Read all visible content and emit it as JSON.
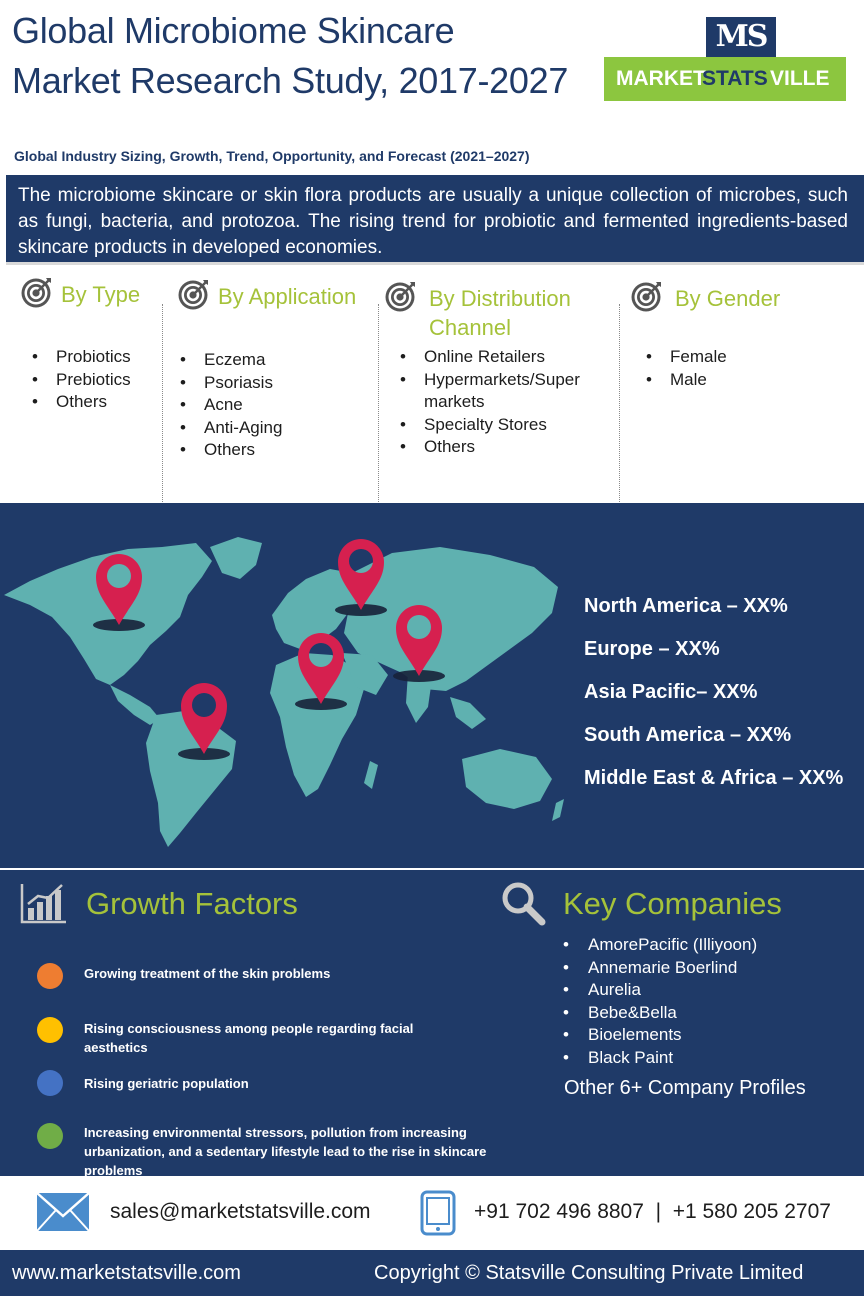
{
  "header": {
    "title": "Global Microbiome Skincare Market Research Study, 2017-2027",
    "subtitle": "Global Industry Sizing, Growth, Trend, Opportunity, and Forecast (2021–2027)"
  },
  "logo": {
    "monogram": "MS",
    "word1": "MARKET",
    "word2": "STATS",
    "word3": "VILLE",
    "colors": {
      "navy": "#1f3a68",
      "green": "#8cc63f"
    }
  },
  "description": "The microbiome skincare or skin flora products are usually a unique collection of microbes, such as fungi, bacteria, and protozoa. The rising trend for probiotic and fermented ingredients-based skincare products in developed economies.",
  "segments": [
    {
      "title": "By Type",
      "items": [
        "Probiotics",
        "Prebiotics",
        "Others"
      ]
    },
    {
      "title": "By Application",
      "items": [
        "Eczema",
        "Psoriasis",
        "Acne",
        "Anti-Aging",
        "Others"
      ]
    },
    {
      "title": "By  Distribution Channel",
      "items": [
        "Online Retailers",
        "Hypermarkets/Super markets",
        "Specialty Stores",
        "Others"
      ]
    },
    {
      "title": "By  Gender",
      "items": [
        "Female",
        "Male"
      ]
    }
  ],
  "regions": [
    "North America – XX%",
    "Europe – XX%",
    "Asia Pacific– XX%",
    "South America – XX%",
    "Middle East & Africa – XX%"
  ],
  "growth_factors": {
    "title": "Growth Factors",
    "items": [
      {
        "text": "Growing treatment of the skin problems",
        "color": "#ee7d31"
      },
      {
        "text": "Rising consciousness among people regarding facial aesthetics",
        "color": "#ffc000"
      },
      {
        "text": "Rising geriatric population",
        "color": "#4472c4"
      },
      {
        "text": "Increasing environmental stressors, pollution from increasing urbanization, and a sedentary lifestyle lead to the rise in skincare problems",
        "color": "#70ad47"
      }
    ]
  },
  "key_companies": {
    "title": "Key Companies",
    "items": [
      "AmorePacific (Illiyoon)",
      "Annemarie Boerlind",
      "Aurelia",
      "Bebe&Bella",
      "Bioelements",
      "Black Paint"
    ],
    "other": "Other 6+ Company Profiles"
  },
  "contact": {
    "email": "sales@marketstatsville.com",
    "phones": "+91 702 496 8807  |  +1 580 205 2707"
  },
  "footer": {
    "website": "www.marketstatsville.com",
    "copyright": "Copyright © Statsville Consulting Private Limited"
  },
  "theme": {
    "navy": "#1f3a68",
    "accent_green": "#a5c23a",
    "map_teal": "#5fb1b0",
    "pin_red": "#d6204f"
  },
  "icons": {
    "segment": "target-icon",
    "growth": "bar-chart-icon",
    "companies": "magnifier-icon",
    "email": "envelope-icon",
    "phone": "mobile-phone-icon",
    "map_pin": "map-pin-icon"
  }
}
